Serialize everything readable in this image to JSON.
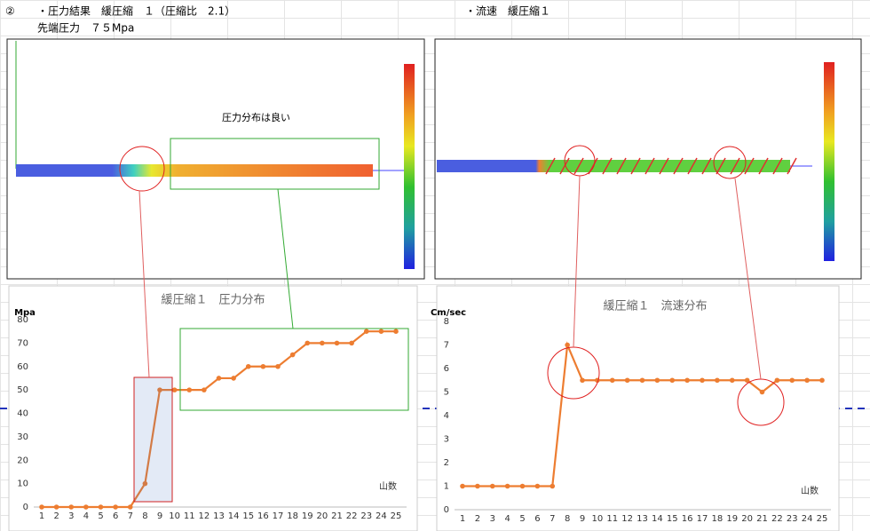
{
  "header": {
    "marker": "②",
    "left_title": "・圧力結果　緩圧縮　１（圧縮比　2.1）",
    "tip_pressure": "先端圧力　７５Mpa",
    "right_title": "・流速　緩圧縮１"
  },
  "image_note": "圧力分布は良い",
  "chart_data": [
    {
      "type": "line",
      "title": "緩圧縮１　圧力分布",
      "y_label": "Mpa",
      "x_label": "山数",
      "categories": [
        "1",
        "2",
        "3",
        "4",
        "5",
        "6",
        "7",
        "8",
        "9",
        "10",
        "11",
        "12",
        "13",
        "14",
        "15",
        "16",
        "17",
        "18",
        "19",
        "20",
        "21",
        "22",
        "23",
        "24",
        "25"
      ],
      "series": [
        {
          "color": "#ED7D31",
          "values": [
            0,
            0,
            0,
            0,
            0,
            0,
            0,
            10,
            50,
            50,
            50,
            50,
            55,
            55,
            60,
            60,
            60,
            65,
            70,
            70,
            70,
            70,
            75,
            75,
            75
          ]
        }
      ],
      "ylim": [
        0,
        80
      ],
      "yticks": [
        0,
        10,
        20,
        30,
        40,
        50,
        60,
        70,
        80
      ]
    },
    {
      "type": "line",
      "title": "緩圧縮１　流速分布",
      "y_label": "Cm/sec",
      "x_label": "山数",
      "categories": [
        "1",
        "2",
        "3",
        "4",
        "5",
        "6",
        "7",
        "8",
        "9",
        "10",
        "11",
        "12",
        "13",
        "14",
        "15",
        "16",
        "17",
        "18",
        "19",
        "20",
        "21",
        "22",
        "23",
        "24",
        "25"
      ],
      "series": [
        {
          "color": "#ED7D31",
          "values": [
            1,
            1,
            1,
            1,
            1,
            1,
            1,
            7,
            5.5,
            5.5,
            5.5,
            5.5,
            5.5,
            5.5,
            5.5,
            5.5,
            5.5,
            5.5,
            5.5,
            5.5,
            5,
            5.5,
            5.5,
            5.5,
            5.5
          ]
        }
      ],
      "ylim": [
        0,
        8
      ],
      "yticks": [
        0,
        1,
        2,
        3,
        4,
        5,
        6,
        7,
        8
      ]
    }
  ]
}
